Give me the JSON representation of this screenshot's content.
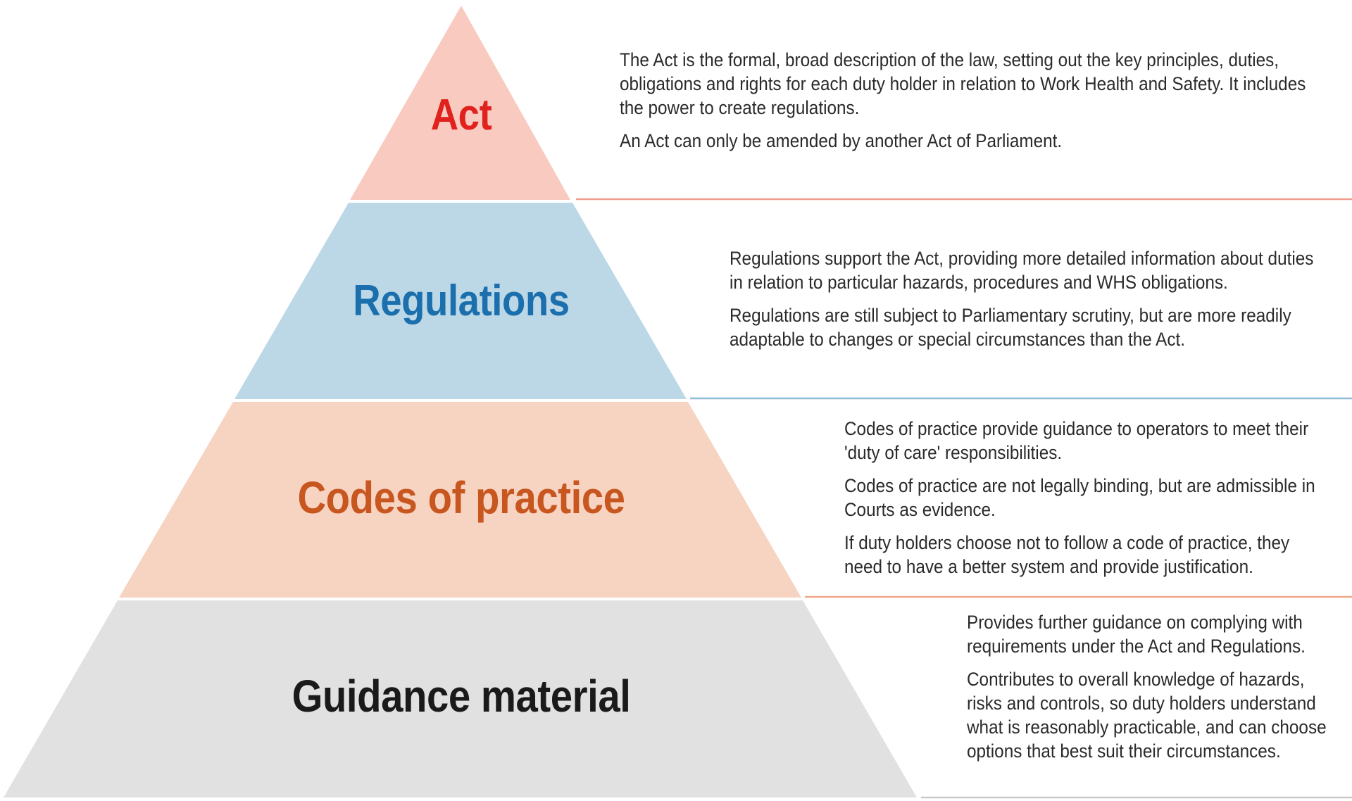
{
  "tiers": [
    {
      "id": "act",
      "title": "Act",
      "color": "#e0211d",
      "fill": "#f9cbc0",
      "line_color": "#ef9c8d",
      "paragraphs": [
        "The Act is the formal, broad description of the law, setting out the key principles, duties, obligations and rights for each duty holder in relation to Work Health and Safety. It includes the power to create regulations.",
        "An Act can only be amended by another Act of Parliament."
      ]
    },
    {
      "id": "regulations",
      "title": "Regulations",
      "color": "#1b6fad",
      "fill": "#bcd8e7",
      "line_color": "#8fbcd6",
      "paragraphs": [
        "Regulations support the Act, providing more detailed information about duties in relation to particular hazards, procedures and WHS obligations.",
        "Regulations are still subject to Parliamentary scrutiny, but are more readily adaptable to changes or special circumstances than the Act."
      ]
    },
    {
      "id": "codes",
      "title": "Codes of practice",
      "color": "#c8561f",
      "fill": "#f7d3c2",
      "line_color": "#efa88a",
      "paragraphs": [
        "Codes of practice provide guidance to operators to meet their 'duty of care' responsibilities.",
        "Codes of practice are not legally binding, but are admissible in Courts as evidence.",
        "If duty holders choose not to follow a code of practice, they need to have a better system and provide justification."
      ]
    },
    {
      "id": "guidance",
      "title": "Guidance material",
      "color": "#1a1a1a",
      "fill": "#e1e1e1",
      "line_color": "#c9c9c9",
      "paragraphs": [
        "Provides further guidance on complying with requirements under the Act and Regulations.",
        "Contributes to overall knowledge of hazards, risks and controls, so duty holders understand what is reasonably practicable, and can choose options that best suit their circumstances."
      ]
    }
  ]
}
